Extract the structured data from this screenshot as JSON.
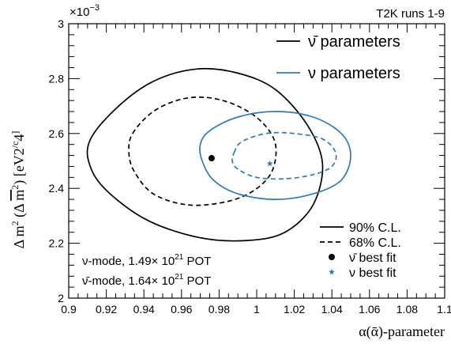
{
  "chart_data": {
    "type": "contour",
    "title_right": "T2K runs 1-9",
    "y_multiplier": "×10",
    "y_multiplier_exp": "−3",
    "xlabel": "α(ᾱ)-parameter",
    "ylabel_parts": [
      "Δ m",
      "2",
      " (Δ ",
      "m",
      "2",
      ") [eV",
      "2",
      "/c",
      "4",
      "]"
    ],
    "xlim": [
      0.9,
      1.1
    ],
    "ylim": [
      2.0,
      3.0
    ],
    "x_ticks": [
      0.9,
      0.92,
      0.94,
      0.96,
      0.98,
      1.0,
      1.02,
      1.04,
      1.06,
      1.08,
      1.1
    ],
    "x_tick_labels": [
      "0.9",
      "0.92",
      "0.94",
      "0.96",
      "0.98",
      "1",
      "1.02",
      "1.04",
      "1.06",
      "1.08",
      "1.1"
    ],
    "y_ticks": [
      2.0,
      2.2,
      2.4,
      2.6,
      2.8,
      3.0
    ],
    "y_tick_labels": [
      "2",
      "2.2",
      "2.4",
      "2.6",
      "2.8",
      "3"
    ],
    "colors": {
      "nubar": "#000000",
      "nu": "#2b7bbb"
    },
    "contours": [
      {
        "name": "ν̄ 90% C.L.",
        "color": "nubar",
        "dash": false,
        "points": [
          [
            0.911,
            2.57
          ],
          [
            0.925,
            2.69
          ],
          [
            0.945,
            2.79
          ],
          [
            0.968,
            2.835
          ],
          [
            0.99,
            2.82
          ],
          [
            1.01,
            2.76
          ],
          [
            1.027,
            2.63
          ],
          [
            1.035,
            2.49
          ],
          [
            1.03,
            2.34
          ],
          [
            1.015,
            2.24
          ],
          [
            0.995,
            2.21
          ],
          [
            0.97,
            2.22
          ],
          [
            0.943,
            2.28
          ],
          [
            0.922,
            2.38
          ],
          [
            0.912,
            2.47
          ]
        ]
      },
      {
        "name": "ν̄ 68% C.L.",
        "color": "nubar",
        "dash": true,
        "points": [
          [
            0.934,
            2.6
          ],
          [
            0.945,
            2.68
          ],
          [
            0.96,
            2.725
          ],
          [
            0.975,
            2.73
          ],
          [
            0.99,
            2.7
          ],
          [
            1.003,
            2.64
          ],
          [
            1.01,
            2.56
          ],
          [
            1.008,
            2.46
          ],
          [
            0.998,
            2.39
          ],
          [
            0.983,
            2.35
          ],
          [
            0.963,
            2.34
          ],
          [
            0.945,
            2.38
          ],
          [
            0.935,
            2.46
          ],
          [
            0.932,
            2.53
          ]
        ]
      },
      {
        "name": "ν 90% C.L.",
        "color": "nu",
        "dash": false,
        "points": [
          [
            0.97,
            2.56
          ],
          [
            0.975,
            2.61
          ],
          [
            0.99,
            2.66
          ],
          [
            1.01,
            2.68
          ],
          [
            1.03,
            2.66
          ],
          [
            1.045,
            2.6
          ],
          [
            1.05,
            2.52
          ],
          [
            1.045,
            2.43
          ],
          [
            1.03,
            2.38
          ],
          [
            1.01,
            2.36
          ],
          [
            0.99,
            2.38
          ],
          [
            0.977,
            2.43
          ],
          [
            0.971,
            2.5
          ]
        ]
      },
      {
        "name": "ν 68% C.L.",
        "color": "nu",
        "dash": true,
        "points": [
          [
            0.988,
            2.53
          ],
          [
            0.992,
            2.57
          ],
          [
            1.005,
            2.6
          ],
          [
            1.02,
            2.6
          ],
          [
            1.035,
            2.58
          ],
          [
            1.042,
            2.53
          ],
          [
            1.04,
            2.48
          ],
          [
            1.03,
            2.45
          ],
          [
            1.015,
            2.435
          ],
          [
            1.0,
            2.44
          ],
          [
            0.99,
            2.47
          ],
          [
            0.987,
            2.5
          ]
        ]
      }
    ],
    "best_fits": [
      {
        "name": "ν̄ best fit",
        "x": 0.976,
        "y": 2.51,
        "marker": "dot",
        "color": "nubar"
      },
      {
        "name": "ν best fit",
        "x": 1.007,
        "y": 2.49,
        "marker": "star",
        "color": "nu"
      }
    ],
    "legend_top": [
      {
        "label": "ν̄ parameters",
        "color": "nubar"
      },
      {
        "label": "ν parameters",
        "color": "nu"
      }
    ],
    "legend_bottom": [
      {
        "label": "90% C.L.",
        "style": "solid"
      },
      {
        "label": "68% C.L.",
        "style": "dashed"
      },
      {
        "label": "ν̄ best fit",
        "style": "dot"
      },
      {
        "label": "ν best fit",
        "style": "star"
      }
    ],
    "annotations": [
      {
        "prefix": "ν-mode, 1.49× 10",
        "exp": "21",
        "suffix": " POT"
      },
      {
        "prefix": "ν̄-mode, 1.64× 10",
        "exp": "21",
        "suffix": " POT"
      }
    ]
  }
}
